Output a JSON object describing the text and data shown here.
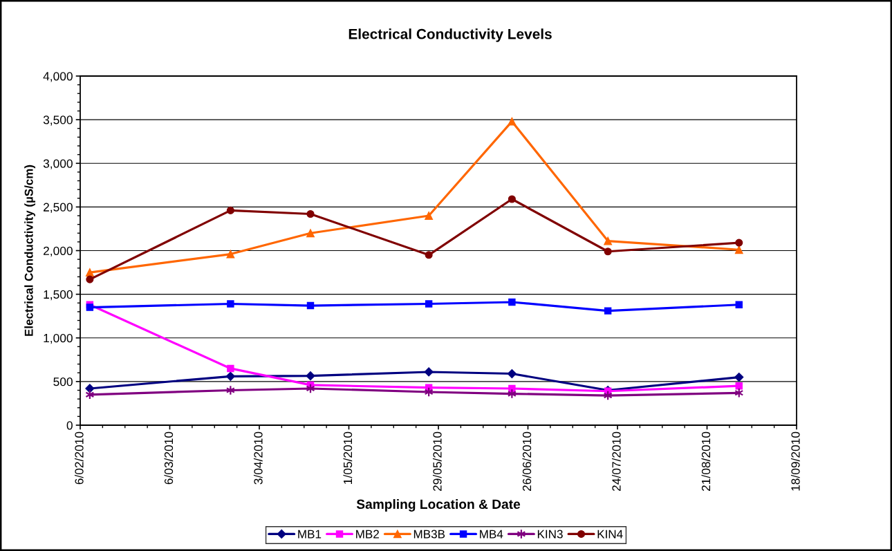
{
  "chart_data": {
    "type": "line",
    "title": "Electrical Conductivity Levels",
    "xlabel": "Sampling Location & Date",
    "ylabel": "Electrical Conductivity (µS/cm)",
    "x": [
      "2010-02-09",
      "2010-03-25",
      "2010-04-19",
      "2010-05-26",
      "2010-06-21",
      "2010-07-21",
      "2010-08-31"
    ],
    "series": [
      {
        "name": "MB1",
        "color": "#000080",
        "marker": "diamond",
        "values": [
          420,
          560,
          565,
          610,
          590,
          400,
          550
        ]
      },
      {
        "name": "MB2",
        "color": "#ff00ff",
        "marker": "square",
        "values": [
          1380,
          650,
          460,
          430,
          420,
          390,
          450
        ]
      },
      {
        "name": "MB3B",
        "color": "#ff6600",
        "marker": "triangle",
        "values": [
          1750,
          1960,
          2200,
          2400,
          3480,
          2110,
          2010
        ]
      },
      {
        "name": "MB4",
        "color": "#0000ff",
        "marker": "square",
        "values": [
          1350,
          1390,
          1370,
          1390,
          1410,
          1310,
          1380
        ]
      },
      {
        "name": "KIN3",
        "color": "#800080",
        "marker": "cross",
        "values": [
          350,
          400,
          420,
          380,
          360,
          340,
          370
        ]
      },
      {
        "name": "KIN4",
        "color": "#800000",
        "marker": "circle",
        "values": [
          1670,
          2460,
          2420,
          1950,
          2590,
          1990,
          2090
        ]
      }
    ],
    "line_style": "solid",
    "xlim": [
      "2010-02-06",
      "2010-09-18"
    ],
    "xticks": [
      {
        "value": "2010-02-06",
        "label": "6/02/2010"
      },
      {
        "value": "2010-02-13",
        "label": null
      },
      {
        "value": "2010-02-20",
        "label": null
      },
      {
        "value": "2010-02-27",
        "label": null
      },
      {
        "value": "2010-03-06",
        "label": "6/03/2010"
      },
      {
        "value": "2010-03-13",
        "label": null
      },
      {
        "value": "2010-03-20",
        "label": null
      },
      {
        "value": "2010-03-27",
        "label": null
      },
      {
        "value": "2010-04-03",
        "label": "3/04/2010"
      },
      {
        "value": "2010-04-10",
        "label": null
      },
      {
        "value": "2010-04-17",
        "label": null
      },
      {
        "value": "2010-04-24",
        "label": null
      },
      {
        "value": "2010-05-01",
        "label": "1/05/2010"
      },
      {
        "value": "2010-05-08",
        "label": null
      },
      {
        "value": "2010-05-15",
        "label": null
      },
      {
        "value": "2010-05-22",
        "label": null
      },
      {
        "value": "2010-05-29",
        "label": "29/05/2010"
      },
      {
        "value": "2010-06-05",
        "label": null
      },
      {
        "value": "2010-06-12",
        "label": null
      },
      {
        "value": "2010-06-19",
        "label": null
      },
      {
        "value": "2010-06-26",
        "label": "26/06/2010"
      },
      {
        "value": "2010-07-03",
        "label": null
      },
      {
        "value": "2010-07-10",
        "label": null
      },
      {
        "value": "2010-07-17",
        "label": null
      },
      {
        "value": "2010-07-24",
        "label": "24/07/2010"
      },
      {
        "value": "2010-07-31",
        "label": null
      },
      {
        "value": "2010-08-07",
        "label": null
      },
      {
        "value": "2010-08-14",
        "label": null
      },
      {
        "value": "2010-08-21",
        "label": "21/08/2010"
      },
      {
        "value": "2010-08-28",
        "label": null
      },
      {
        "value": "2010-09-04",
        "label": null
      },
      {
        "value": "2010-09-11",
        "label": null
      },
      {
        "value": "2010-09-18",
        "label": "18/09/2010"
      }
    ],
    "ylim": [
      0,
      4000
    ],
    "yticks": [
      0,
      {
        "value": 100,
        "label": null
      },
      {
        "value": 200,
        "label": null
      },
      {
        "value": 300,
        "label": null
      },
      {
        "value": 400,
        "label": null
      },
      500,
      {
        "value": 600,
        "label": null
      },
      {
        "value": 700,
        "label": null
      },
      {
        "value": 800,
        "label": null
      },
      {
        "value": 900,
        "label": null
      },
      {
        "value": 1000,
        "label": "1,000"
      },
      {
        "value": 1100,
        "label": null
      },
      {
        "value": 1200,
        "label": null
      },
      {
        "value": 1300,
        "label": null
      },
      {
        "value": 1400,
        "label": null
      },
      {
        "value": 1500,
        "label": "1,500"
      },
      {
        "value": 1600,
        "label": null
      },
      {
        "value": 1700,
        "label": null
      },
      {
        "value": 1800,
        "label": null
      },
      {
        "value": 1900,
        "label": null
      },
      {
        "value": 2000,
        "label": "2,000"
      },
      {
        "value": 2100,
        "label": null
      },
      {
        "value": 2200,
        "label": null
      },
      {
        "value": 2300,
        "label": null
      },
      {
        "value": 2400,
        "label": null
      },
      {
        "value": 2500,
        "label": "2,500"
      },
      {
        "value": 2600,
        "label": null
      },
      {
        "value": 2700,
        "label": null
      },
      {
        "value": 2800,
        "label": null
      },
      {
        "value": 2900,
        "label": null
      },
      {
        "value": 3000,
        "label": "3,000"
      },
      {
        "value": 3100,
        "label": null
      },
      {
        "value": 3200,
        "label": null
      },
      {
        "value": 3300,
        "label": null
      },
      {
        "value": 3400,
        "label": null
      },
      {
        "value": 3500,
        "label": "3,500"
      },
      {
        "value": 3600,
        "label": null
      },
      {
        "value": 3700,
        "label": null
      },
      {
        "value": 3800,
        "label": null
      },
      {
        "value": 3900,
        "label": null
      },
      {
        "value": 4000,
        "label": "4,000"
      }
    ],
    "grid": "y",
    "legend": "bottom"
  }
}
